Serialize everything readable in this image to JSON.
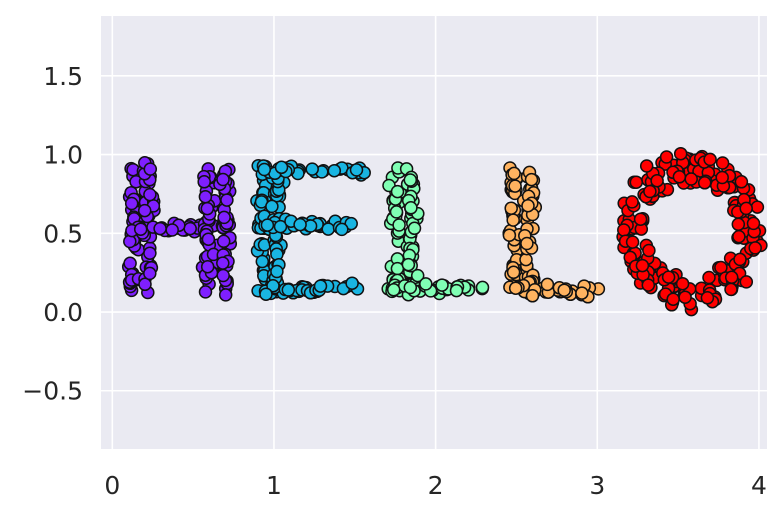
{
  "chart_data": {
    "type": "scatter",
    "title": "",
    "xlabel": "",
    "ylabel": "",
    "xlim": [
      -0.07,
      4.05
    ],
    "ylim": [
      -0.87,
      1.88
    ],
    "xticks": [
      0,
      1,
      2,
      3,
      4
    ],
    "yticks": [
      -0.5,
      0.0,
      0.5,
      1.0,
      1.5
    ],
    "xtick_labels": [
      "0",
      "1",
      "2",
      "3",
      "4"
    ],
    "ytick_labels": [
      "−0.5",
      "0.0",
      "0.5",
      "1.0",
      "1.5"
    ],
    "grid": true,
    "background": "#eaeaf2",
    "marker_edge_color": "#111111",
    "series": [
      {
        "color": "#7f1fff",
        "segments": [
          [
            0.13,
            0.12,
            0.13,
            0.93
          ],
          [
            0.22,
            0.12,
            0.22,
            0.93
          ],
          [
            0.12,
            0.52,
            0.7,
            0.55
          ],
          [
            0.6,
            0.12,
            0.6,
            0.93
          ],
          [
            0.7,
            0.12,
            0.7,
            0.93
          ]
        ],
        "n": 200
      },
      {
        "color": "#19b5e2",
        "segments": [
          [
            0.93,
            0.12,
            0.93,
            0.93
          ],
          [
            1.02,
            0.12,
            1.02,
            0.93
          ],
          [
            0.93,
            0.9,
            1.55,
            0.9
          ],
          [
            0.93,
            0.55,
            1.5,
            0.55
          ],
          [
            0.93,
            0.13,
            1.55,
            0.18
          ]
        ],
        "n": 180
      },
      {
        "color": "#80ffb4",
        "segments": [
          [
            1.75,
            0.13,
            1.75,
            0.93
          ],
          [
            1.85,
            0.13,
            1.85,
            0.93
          ],
          [
            1.75,
            0.13,
            2.32,
            0.17
          ]
        ],
        "n": 110
      },
      {
        "color": "#ffb360",
        "segments": [
          [
            2.48,
            0.13,
            2.48,
            0.93
          ],
          [
            2.58,
            0.13,
            2.58,
            0.93
          ],
          [
            2.48,
            0.13,
            3.05,
            0.14
          ]
        ],
        "n": 110
      },
      {
        "color": "#ff0000",
        "ellipse": {
          "cx": 3.58,
          "cy": 0.52,
          "rx": 0.36,
          "ry": 0.4,
          "thickness": 0.09
        },
        "n": 220
      }
    ]
  }
}
